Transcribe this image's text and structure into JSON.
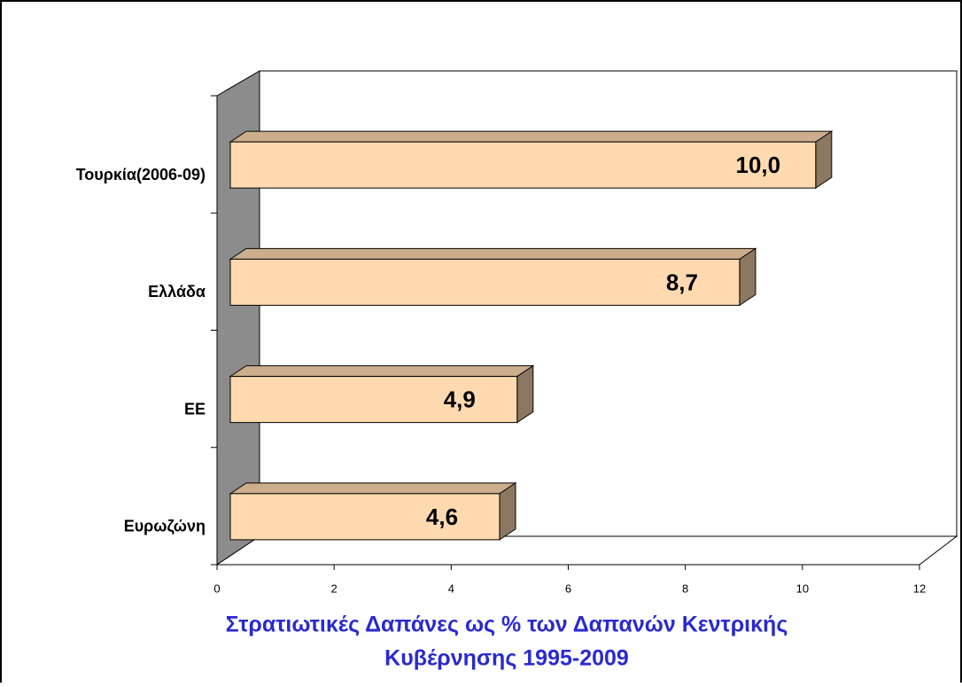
{
  "chart_data": {
    "type": "bar3d_horizontal",
    "title_lines": [
      "Στρατιωτικές Δαπάνες ως % των Δαπανών Κεντρικής",
      "Κυβέρνησης 1995-2009"
    ],
    "categories": [
      "Τουρκία(2006-09)",
      "Ελλάδα",
      "ΕΕ",
      "Ευρωζώνη"
    ],
    "values": [
      10.0,
      8.7,
      4.9,
      4.6
    ],
    "value_labels": [
      "10,0",
      "8,7",
      "4,9",
      "4,6"
    ],
    "color": "#FFDAB0",
    "xlim": [
      0,
      12
    ],
    "xticks": [
      0,
      2,
      4,
      6,
      8,
      10,
      12
    ]
  }
}
